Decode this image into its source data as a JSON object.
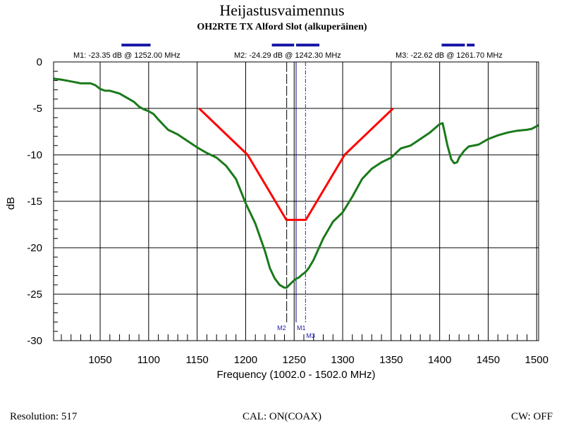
{
  "chart_data": {
    "type": "line",
    "title": "Heijastusvaimennus",
    "subtitle": "OH2RTE TX Alford Slot (alkuperäinen)",
    "xlabel": "Frequency (1002.0 - 1502.0 MHz)",
    "ylabel": "dB",
    "xlim": [
      1002,
      1502
    ],
    "ylim": [
      -30,
      0
    ],
    "x_ticks": [
      1050,
      1100,
      1150,
      1200,
      1250,
      1300,
      1350,
      1400,
      1450,
      1500
    ],
    "y_ticks": [
      0,
      -5,
      -10,
      -15,
      -20,
      -25,
      -30
    ],
    "grid": true,
    "colors": {
      "measurement": "#1a7a1a",
      "mask": "#ff0000",
      "markers": "#1a1aa8"
    },
    "series": [
      {
        "x": [
          1002,
          1010,
          1020,
          1030,
          1040,
          1045,
          1050,
          1055,
          1060,
          1070,
          1080,
          1085,
          1090,
          1095,
          1100,
          1105,
          1110,
          1120,
          1130,
          1140,
          1150,
          1160,
          1170,
          1180,
          1190,
          1200,
          1210,
          1220,
          1225,
          1230,
          1235,
          1240,
          1242.3,
          1245,
          1250,
          1252,
          1255,
          1258,
          1261.7,
          1265,
          1270,
          1280,
          1290,
          1300,
          1310,
          1320,
          1330,
          1340,
          1350,
          1360,
          1370,
          1380,
          1390,
          1400,
          1403,
          1405,
          1408,
          1412,
          1415,
          1418,
          1420,
          1425,
          1430,
          1440,
          1450,
          1460,
          1470,
          1480,
          1490,
          1495,
          1502
        ],
        "values": [
          -1.8,
          -1.9,
          -2.1,
          -2.3,
          -2.3,
          -2.5,
          -2.9,
          -3.1,
          -3.1,
          -3.4,
          -4.0,
          -4.3,
          -4.8,
          -5.1,
          -5.3,
          -5.6,
          -6.2,
          -7.3,
          -7.8,
          -8.5,
          -9.2,
          -9.8,
          -10.3,
          -11.2,
          -12.6,
          -15.2,
          -17.4,
          -20.4,
          -22.2,
          -23.3,
          -24.0,
          -24.3,
          -24.29,
          -24.0,
          -23.5,
          -23.35,
          -23.2,
          -22.9,
          -22.62,
          -22.2,
          -21.3,
          -19.0,
          -17.2,
          -16.2,
          -14.5,
          -12.6,
          -11.5,
          -10.8,
          -10.3,
          -9.3,
          -9.0,
          -8.3,
          -7.6,
          -6.7,
          -6.6,
          -7.5,
          -9.0,
          -10.5,
          -10.9,
          -10.8,
          -10.3,
          -9.6,
          -9.1,
          -8.9,
          -8.3,
          -7.9,
          -7.6,
          -7.4,
          -7.3,
          -7.2,
          -6.8
        ]
      },
      {
        "x": [
          1152,
          1202,
          1242,
          1262,
          1302,
          1352
        ],
        "values": [
          -5,
          -10,
          -17,
          -17,
          -10,
          -5
        ]
      }
    ],
    "markers": [
      {
        "name": "M1",
        "label": "M1: -23.35 dB @ 1252.00 MHz",
        "x": 1252.0
      },
      {
        "name": "M2",
        "label": "M2: -24.29 dB @ 1242.30 MHz",
        "x": 1242.3
      },
      {
        "name": "M3",
        "label": "M3: -22.62 dB @ 1261.70 MHz",
        "x": 1261.7
      }
    ],
    "top_bars": [
      [
        1072,
        1102
      ],
      [
        1227,
        1250
      ],
      [
        1252,
        1276
      ],
      [
        1402,
        1426
      ],
      [
        1428,
        1436
      ]
    ]
  },
  "footer": {
    "resolution": "Resolution:  517",
    "cal": "CAL: ON(COAX)",
    "cw": "CW: OFF"
  }
}
